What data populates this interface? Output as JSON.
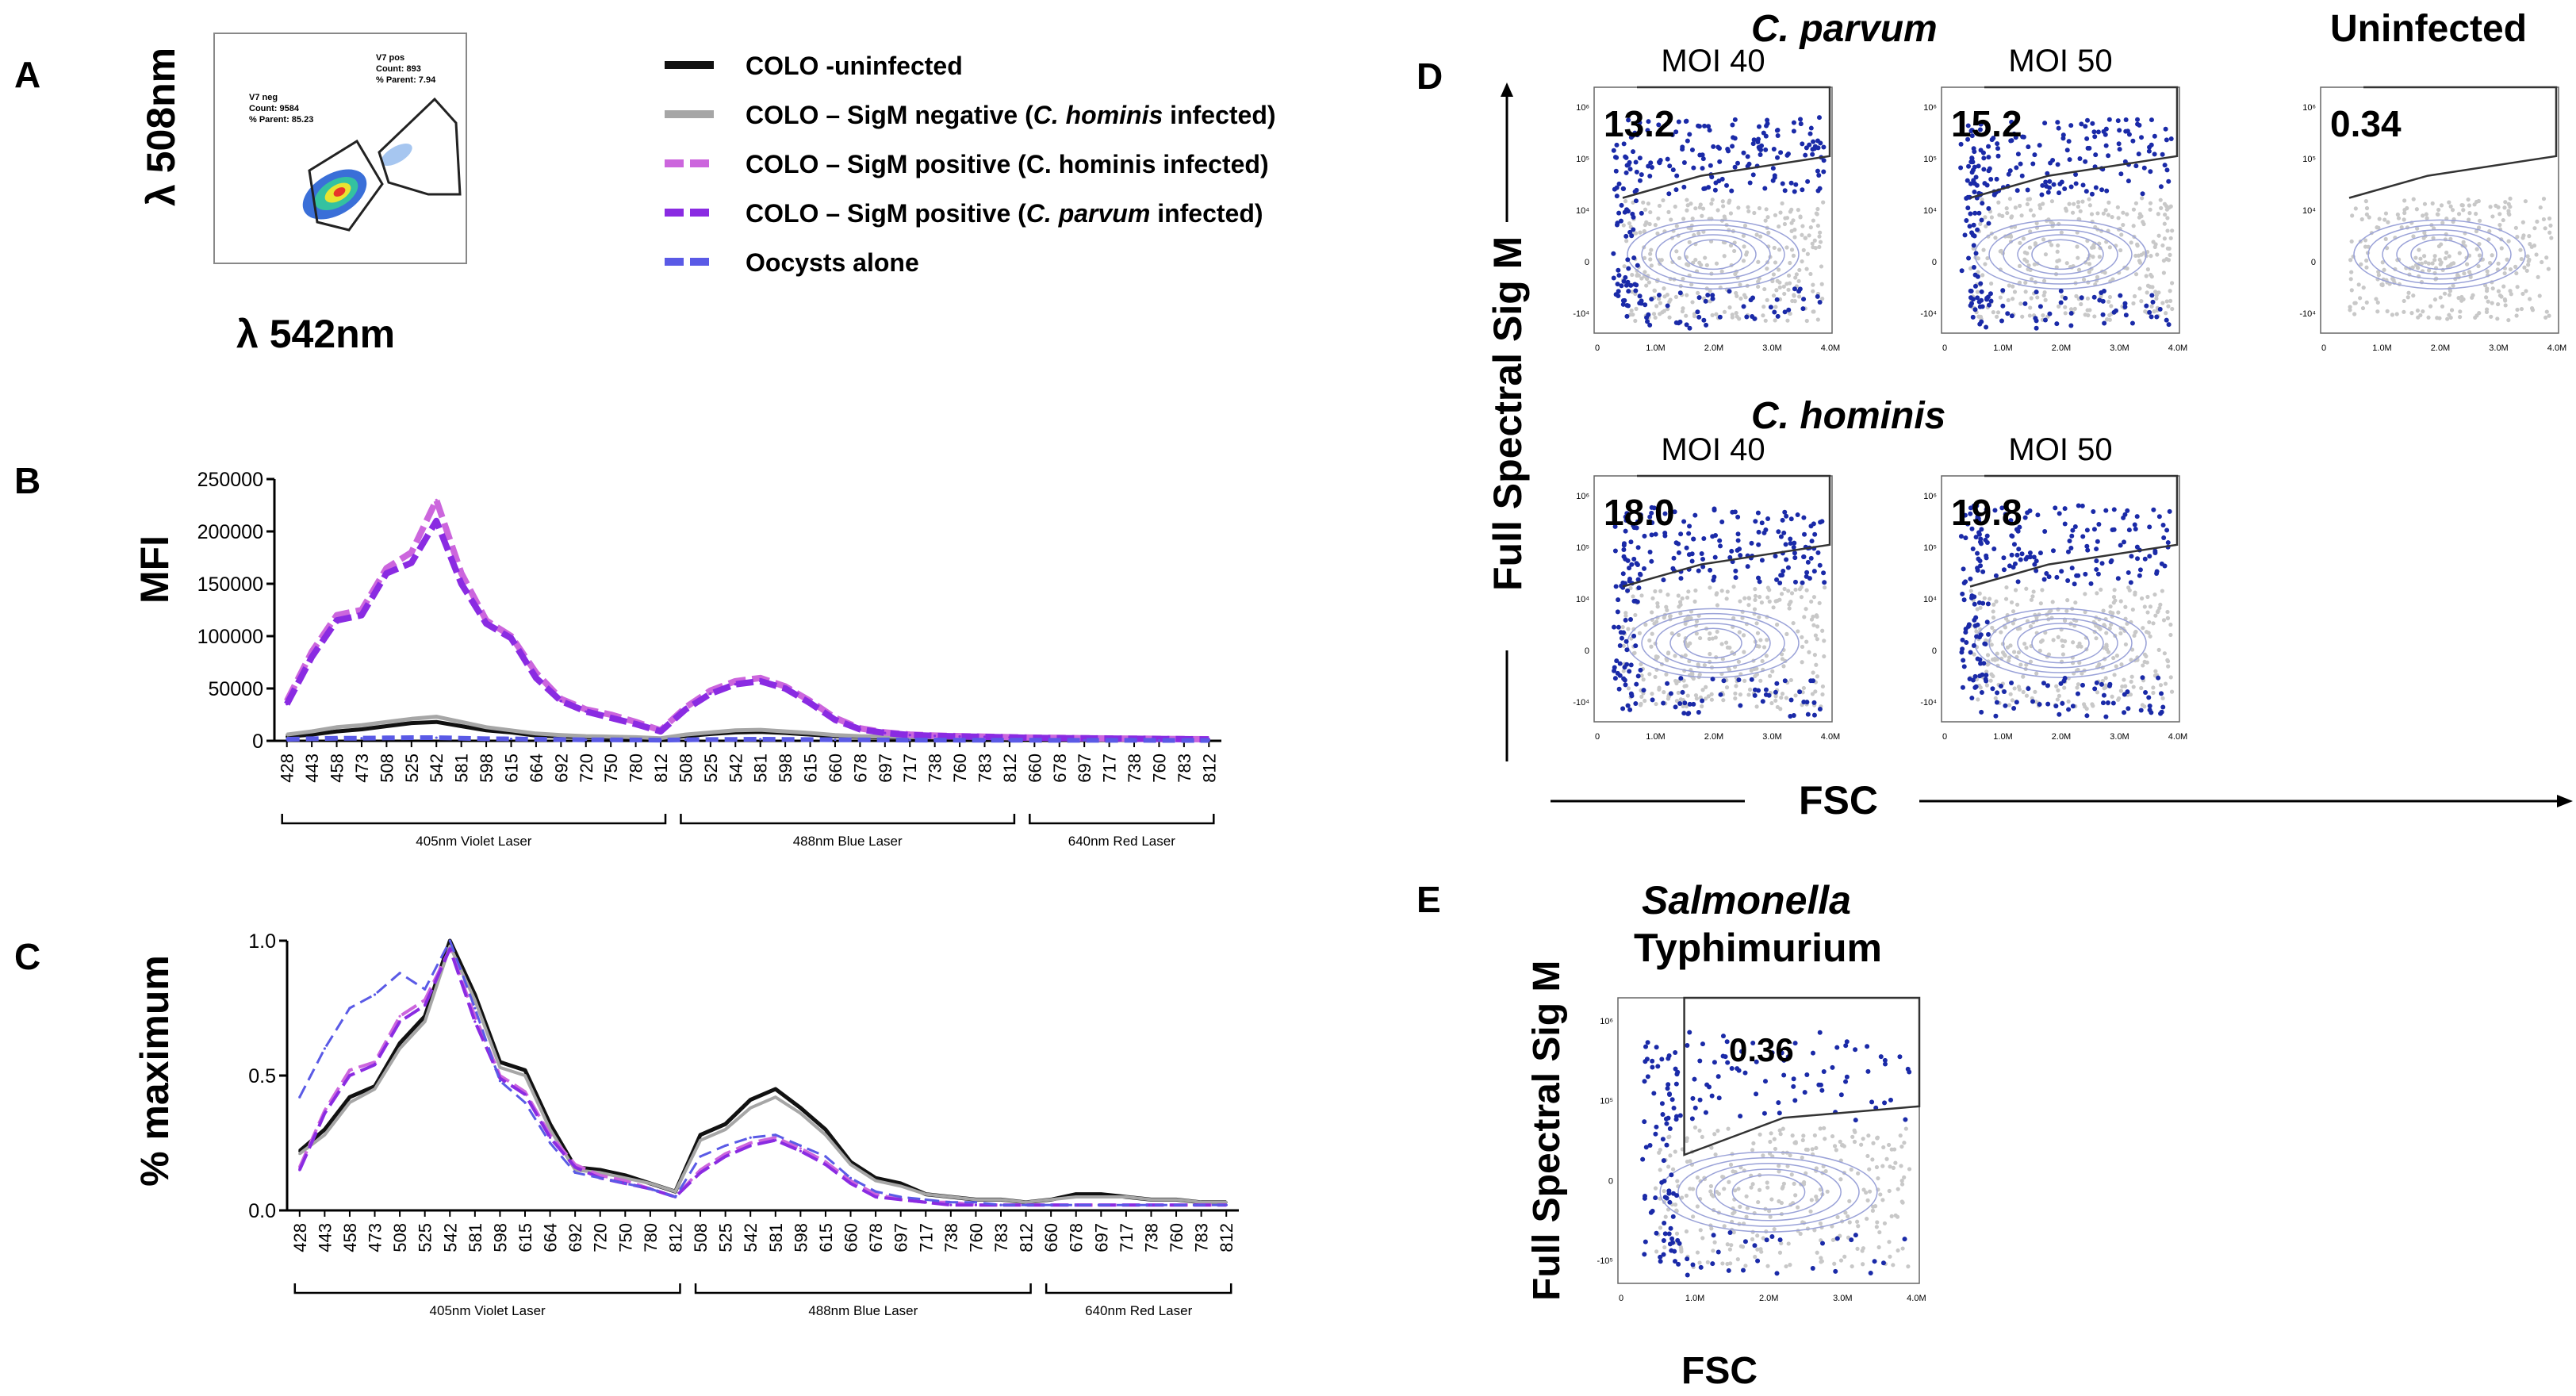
{
  "panels": {
    "A": {
      "letter": "A",
      "y_axis": "λ 508nm",
      "x_axis": "λ 542nm",
      "gate_pos": {
        "name": "V7 pos",
        "count": "Count: 893",
        "parent": "% Parent: 7.94"
      },
      "gate_neg": {
        "name": "V7 neg",
        "count": "Count: 9584",
        "parent": "% Parent: 85.23"
      }
    },
    "B": {
      "letter": "B",
      "ylabel": "MFI"
    },
    "C": {
      "letter": "C",
      "ylabel": "% maximum"
    },
    "D": {
      "letter": "D",
      "ylabel": "Full Spectral Sig M",
      "xlabel": "FSC",
      "group1": "C. parvum",
      "group2": "C. hominis",
      "uninfected": "Uninfected",
      "plots": [
        {
          "title": "MOI 40",
          "value": "13.2"
        },
        {
          "title": "MOI 50",
          "value": "15.2"
        },
        {
          "title": "",
          "value": "0.34"
        },
        {
          "title": "MOI 40",
          "value": "18.0"
        },
        {
          "title": "MOI 50",
          "value": "19.8"
        }
      ],
      "x_ticks": [
        "0",
        "1.0M",
        "2.0M",
        "3.0M",
        "4.0M"
      ],
      "y_ticks": [
        "10⁶",
        "10⁵",
        "10⁴",
        "0",
        "-10⁴"
      ]
    },
    "E": {
      "letter": "E",
      "title_line1": "Salmonella",
      "title_line2": "Typhimurium",
      "value": "0.36",
      "ylabel": "Full Spectral Sig M",
      "xlabel": "FSC",
      "x_ticks": [
        "0",
        "1.0M",
        "2.0M",
        "3.0M",
        "4.0M"
      ],
      "y_ticks": [
        "10⁶",
        "10⁵",
        "0",
        "-10⁵"
      ]
    }
  },
  "legend": [
    {
      "pre": "COLO -uninfected",
      "it": "",
      "post": "",
      "color": "#111111",
      "dash": false
    },
    {
      "pre": "COLO – SigM negative (",
      "it": "C. hominis",
      "post": " infected)",
      "color": "#a6a6a6",
      "dash": false
    },
    {
      "pre": "COLO – SigM positive (C. hominis infected)",
      "it": "",
      "post": "",
      "color": "#cc66dd",
      "dash": true
    },
    {
      "pre": "COLO – SigM positive (",
      "it": "C. parvum",
      "post": " infected)",
      "color": "#8a2be2",
      "dash": true
    },
    {
      "pre": "Oocysts alone",
      "it": "",
      "post": "",
      "color": "#5a5ae6",
      "dash": true
    }
  ],
  "colors": {
    "uninfected": "#111111",
    "sigm_neg": "#a6a6a6",
    "sigm_pos_hominis": "#cc66dd",
    "sigm_pos_parvum": "#8a2be2",
    "oocysts": "#5a5ae6",
    "flow_blue": "#1a2aa8",
    "flow_grey": "#c8c8c8"
  },
  "chart_data": [
    {
      "id": "B",
      "type": "line",
      "ylabel": "MFI",
      "ylim": [
        0,
        250000
      ],
      "yticks": [
        0,
        50000,
        100000,
        150000,
        200000,
        250000
      ],
      "ytick_labels": [
        "0",
        "50000",
        "100000",
        "150000",
        "200000",
        "250000"
      ],
      "categories": [
        "428",
        "443",
        "458",
        "473",
        "508",
        "525",
        "542",
        "581",
        "598",
        "615",
        "664",
        "692",
        "720",
        "750",
        "780",
        "812",
        "508",
        "525",
        "542",
        "581",
        "598",
        "615",
        "660",
        "678",
        "697",
        "717",
        "738",
        "760",
        "783",
        "812",
        "660",
        "678",
        "697",
        "717",
        "738",
        "760",
        "783",
        "812"
      ],
      "lasers": [
        {
          "label": "405nm Violet Laser",
          "from": 0,
          "to": 15
        },
        {
          "label": "488nm Blue Laser",
          "from": 16,
          "to": 29
        },
        {
          "label": "640nm Red Laser",
          "from": 30,
          "to": 37
        }
      ],
      "series": [
        {
          "name": "COLO -uninfected",
          "key": "uninfected",
          "values": [
            4000,
            6000,
            9000,
            11000,
            14000,
            17000,
            18000,
            14000,
            10000,
            8000,
            5000,
            4000,
            3500,
            3000,
            2800,
            2000,
            4500,
            6500,
            8000,
            8500,
            7500,
            6000,
            4500,
            3800,
            3200,
            3000,
            2800,
            2500,
            2200,
            2000,
            1900,
            1800,
            1700,
            1600,
            1500,
            1400,
            1300,
            1200
          ]
        },
        {
          "name": "COLO – SigM negative (C. hominis infected)",
          "key": "sigm_neg",
          "values": [
            6000,
            9000,
            13000,
            15000,
            18000,
            21000,
            23000,
            18000,
            13000,
            10000,
            7000,
            5500,
            4500,
            4000,
            3500,
            2500,
            6000,
            8000,
            10000,
            10500,
            9000,
            7500,
            5500,
            4500,
            4000,
            3600,
            3300,
            3000,
            2700,
            2400,
            2200,
            2000,
            1900,
            1800,
            1700,
            1600,
            1500,
            1400
          ]
        },
        {
          "name": "COLO – SigM positive (C. hominis infected)",
          "key": "sigm_pos_hominis",
          "values": [
            38000,
            85000,
            120000,
            125000,
            165000,
            180000,
            230000,
            160000,
            115000,
            100000,
            65000,
            40000,
            30000,
            25000,
            18000,
            10000,
            32000,
            48000,
            57000,
            60000,
            52000,
            38000,
            22000,
            12000,
            8000,
            6000,
            5000,
            4500,
            4000,
            3500,
            3000,
            2800,
            2500,
            2300,
            2100,
            1900,
            1700,
            1500
          ]
        },
        {
          "name": "COLO – SigM positive (C. parvum infected)",
          "key": "sigm_pos_parvum",
          "values": [
            35000,
            80000,
            115000,
            120000,
            160000,
            170000,
            210000,
            150000,
            112000,
            98000,
            60000,
            38000,
            28000,
            22000,
            16000,
            9000,
            30000,
            45000,
            54000,
            57000,
            50000,
            36000,
            20000,
            11000,
            7500,
            5500,
            4800,
            4200,
            3800,
            3300,
            2800,
            2600,
            2400,
            2200,
            2000,
            1800,
            1600,
            1400
          ]
        },
        {
          "name": "Oocysts alone",
          "key": "oocysts",
          "values": [
            1500,
            2000,
            2500,
            2500,
            2800,
            3000,
            3000,
            2500,
            2000,
            1800,
            1500,
            1200,
            1000,
            900,
            800,
            700,
            1000,
            1200,
            1400,
            1500,
            1400,
            1200,
            1000,
            900,
            800,
            700,
            650,
            600,
            550,
            500,
            500,
            480,
            460,
            440,
            420,
            400,
            380,
            360
          ]
        }
      ]
    },
    {
      "id": "C",
      "type": "line",
      "ylabel": "% maximum",
      "ylim": [
        0,
        1.0
      ],
      "yticks": [
        0,
        0.5,
        1.0
      ],
      "ytick_labels": [
        "0.0",
        "0.5",
        "1.0"
      ],
      "categories": [
        "428",
        "443",
        "458",
        "473",
        "508",
        "525",
        "542",
        "581",
        "598",
        "615",
        "664",
        "692",
        "720",
        "750",
        "780",
        "812",
        "508",
        "525",
        "542",
        "581",
        "598",
        "615",
        "660",
        "678",
        "697",
        "717",
        "738",
        "760",
        "783",
        "812",
        "660",
        "678",
        "697",
        "717",
        "738",
        "760",
        "783",
        "812"
      ],
      "lasers": [
        {
          "label": "405nm Violet Laser",
          "from": 0,
          "to": 15
        },
        {
          "label": "488nm Blue Laser",
          "from": 16,
          "to": 29
        },
        {
          "label": "640nm Red Laser",
          "from": 30,
          "to": 37
        }
      ],
      "series": [
        {
          "name": "COLO -uninfected",
          "key": "uninfected",
          "values": [
            0.22,
            0.3,
            0.42,
            0.46,
            0.62,
            0.72,
            1.0,
            0.8,
            0.55,
            0.52,
            0.32,
            0.16,
            0.15,
            0.13,
            0.1,
            0.07,
            0.28,
            0.32,
            0.41,
            0.45,
            0.38,
            0.3,
            0.18,
            0.12,
            0.1,
            0.06,
            0.05,
            0.04,
            0.04,
            0.03,
            0.04,
            0.06,
            0.06,
            0.05,
            0.04,
            0.04,
            0.03,
            0.03
          ]
        },
        {
          "name": "COLO – SigM negative (C. hominis infected)",
          "key": "sigm_neg",
          "values": [
            0.21,
            0.28,
            0.4,
            0.45,
            0.6,
            0.7,
            0.98,
            0.78,
            0.53,
            0.5,
            0.3,
            0.15,
            0.14,
            0.12,
            0.1,
            0.07,
            0.26,
            0.3,
            0.38,
            0.42,
            0.36,
            0.28,
            0.17,
            0.11,
            0.09,
            0.06,
            0.05,
            0.04,
            0.04,
            0.03,
            0.04,
            0.05,
            0.05,
            0.05,
            0.04,
            0.04,
            0.03,
            0.03
          ]
        },
        {
          "name": "COLO – SigM positive (C. hominis infected)",
          "key": "sigm_pos_hominis",
          "values": [
            0.16,
            0.37,
            0.52,
            0.55,
            0.72,
            0.78,
            0.97,
            0.72,
            0.5,
            0.44,
            0.28,
            0.17,
            0.13,
            0.11,
            0.08,
            0.05,
            0.15,
            0.21,
            0.25,
            0.27,
            0.23,
            0.18,
            0.11,
            0.06,
            0.04,
            0.03,
            0.03,
            0.02,
            0.02,
            0.02,
            0.02,
            0.02,
            0.02,
            0.02,
            0.02,
            0.02,
            0.02,
            0.02
          ]
        },
        {
          "name": "COLO – SigM positive (C. parvum infected)",
          "key": "sigm_pos_parvum",
          "values": [
            0.15,
            0.36,
            0.5,
            0.54,
            0.7,
            0.76,
            0.97,
            0.7,
            0.49,
            0.43,
            0.27,
            0.16,
            0.12,
            0.1,
            0.08,
            0.05,
            0.14,
            0.2,
            0.24,
            0.26,
            0.22,
            0.17,
            0.1,
            0.05,
            0.04,
            0.03,
            0.02,
            0.02,
            0.02,
            0.02,
            0.02,
            0.02,
            0.02,
            0.02,
            0.02,
            0.02,
            0.02,
            0.02
          ]
        },
        {
          "name": "Oocysts alone",
          "key": "oocysts",
          "values": [
            0.42,
            0.6,
            0.75,
            0.8,
            0.88,
            0.82,
            1.0,
            0.75,
            0.48,
            0.4,
            0.25,
            0.14,
            0.12,
            0.1,
            0.08,
            0.05,
            0.2,
            0.24,
            0.27,
            0.28,
            0.24,
            0.2,
            0.12,
            0.07,
            0.05,
            0.04,
            0.03,
            0.03,
            0.02,
            0.02,
            0.02,
            0.02,
            0.02,
            0.02,
            0.02,
            0.02,
            0.02,
            0.02
          ]
        }
      ]
    }
  ]
}
